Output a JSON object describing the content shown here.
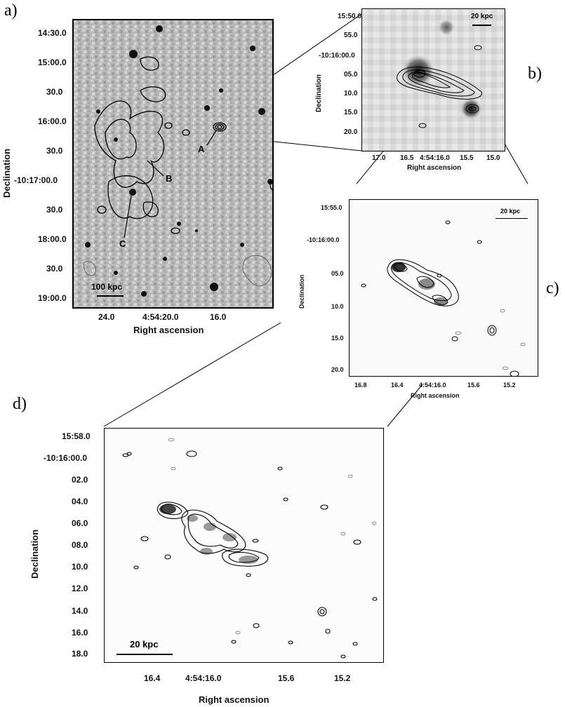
{
  "panels": {
    "a": {
      "letter": "a)",
      "x_title": "Right ascension",
      "y_title": "Declination",
      "x_ticks": [
        "24.0",
        "4:54:20.0",
        "16.0"
      ],
      "y_ticks": [
        "14:30.0",
        "15:00.0",
        "30.0",
        "16:00.0",
        "30.0",
        "-10:17:00.0",
        "30.0",
        "18:00.0",
        "30.0",
        "19:00.0"
      ],
      "scale_label": "100 kpc",
      "sources": [
        "A",
        "B",
        "C"
      ]
    },
    "b": {
      "letter": "b)",
      "x_title": "Right ascension",
      "y_title": "Declination",
      "x_ticks": [
        "17.0",
        "16.5",
        "4:54:16.0",
        "15.5",
        "15.0"
      ],
      "y_ticks": [
        "15:50.0",
        "55.0",
        "-10:16:00.0",
        "05.0",
        "10.0",
        "15.0",
        "20.0"
      ],
      "scale_label": "20 kpc"
    },
    "c": {
      "letter": "c)",
      "x_title": "Right ascension",
      "y_title": "Declination",
      "x_ticks": [
        "16.8",
        "16.4",
        "4:54:16.0",
        "15.6",
        "15.2"
      ],
      "y_ticks": [
        "15:55.0",
        "-10:16:00.0",
        "05.0",
        "10.0",
        "15.0",
        "20.0"
      ],
      "scale_label": "20 kpc"
    },
    "d": {
      "letter": "d)",
      "x_title": "Right ascension",
      "y_title": "Declination",
      "x_ticks": [
        "16.4",
        "4:54:16.0",
        "15.6",
        "15.2"
      ],
      "y_ticks": [
        "15:58.0",
        "-10:16:00.0",
        "02.0",
        "04.0",
        "06.0",
        "08.0",
        "10.0",
        "12.0",
        "14.0",
        "16.0",
        "18.0"
      ],
      "scale_label": "20 kpc"
    }
  }
}
